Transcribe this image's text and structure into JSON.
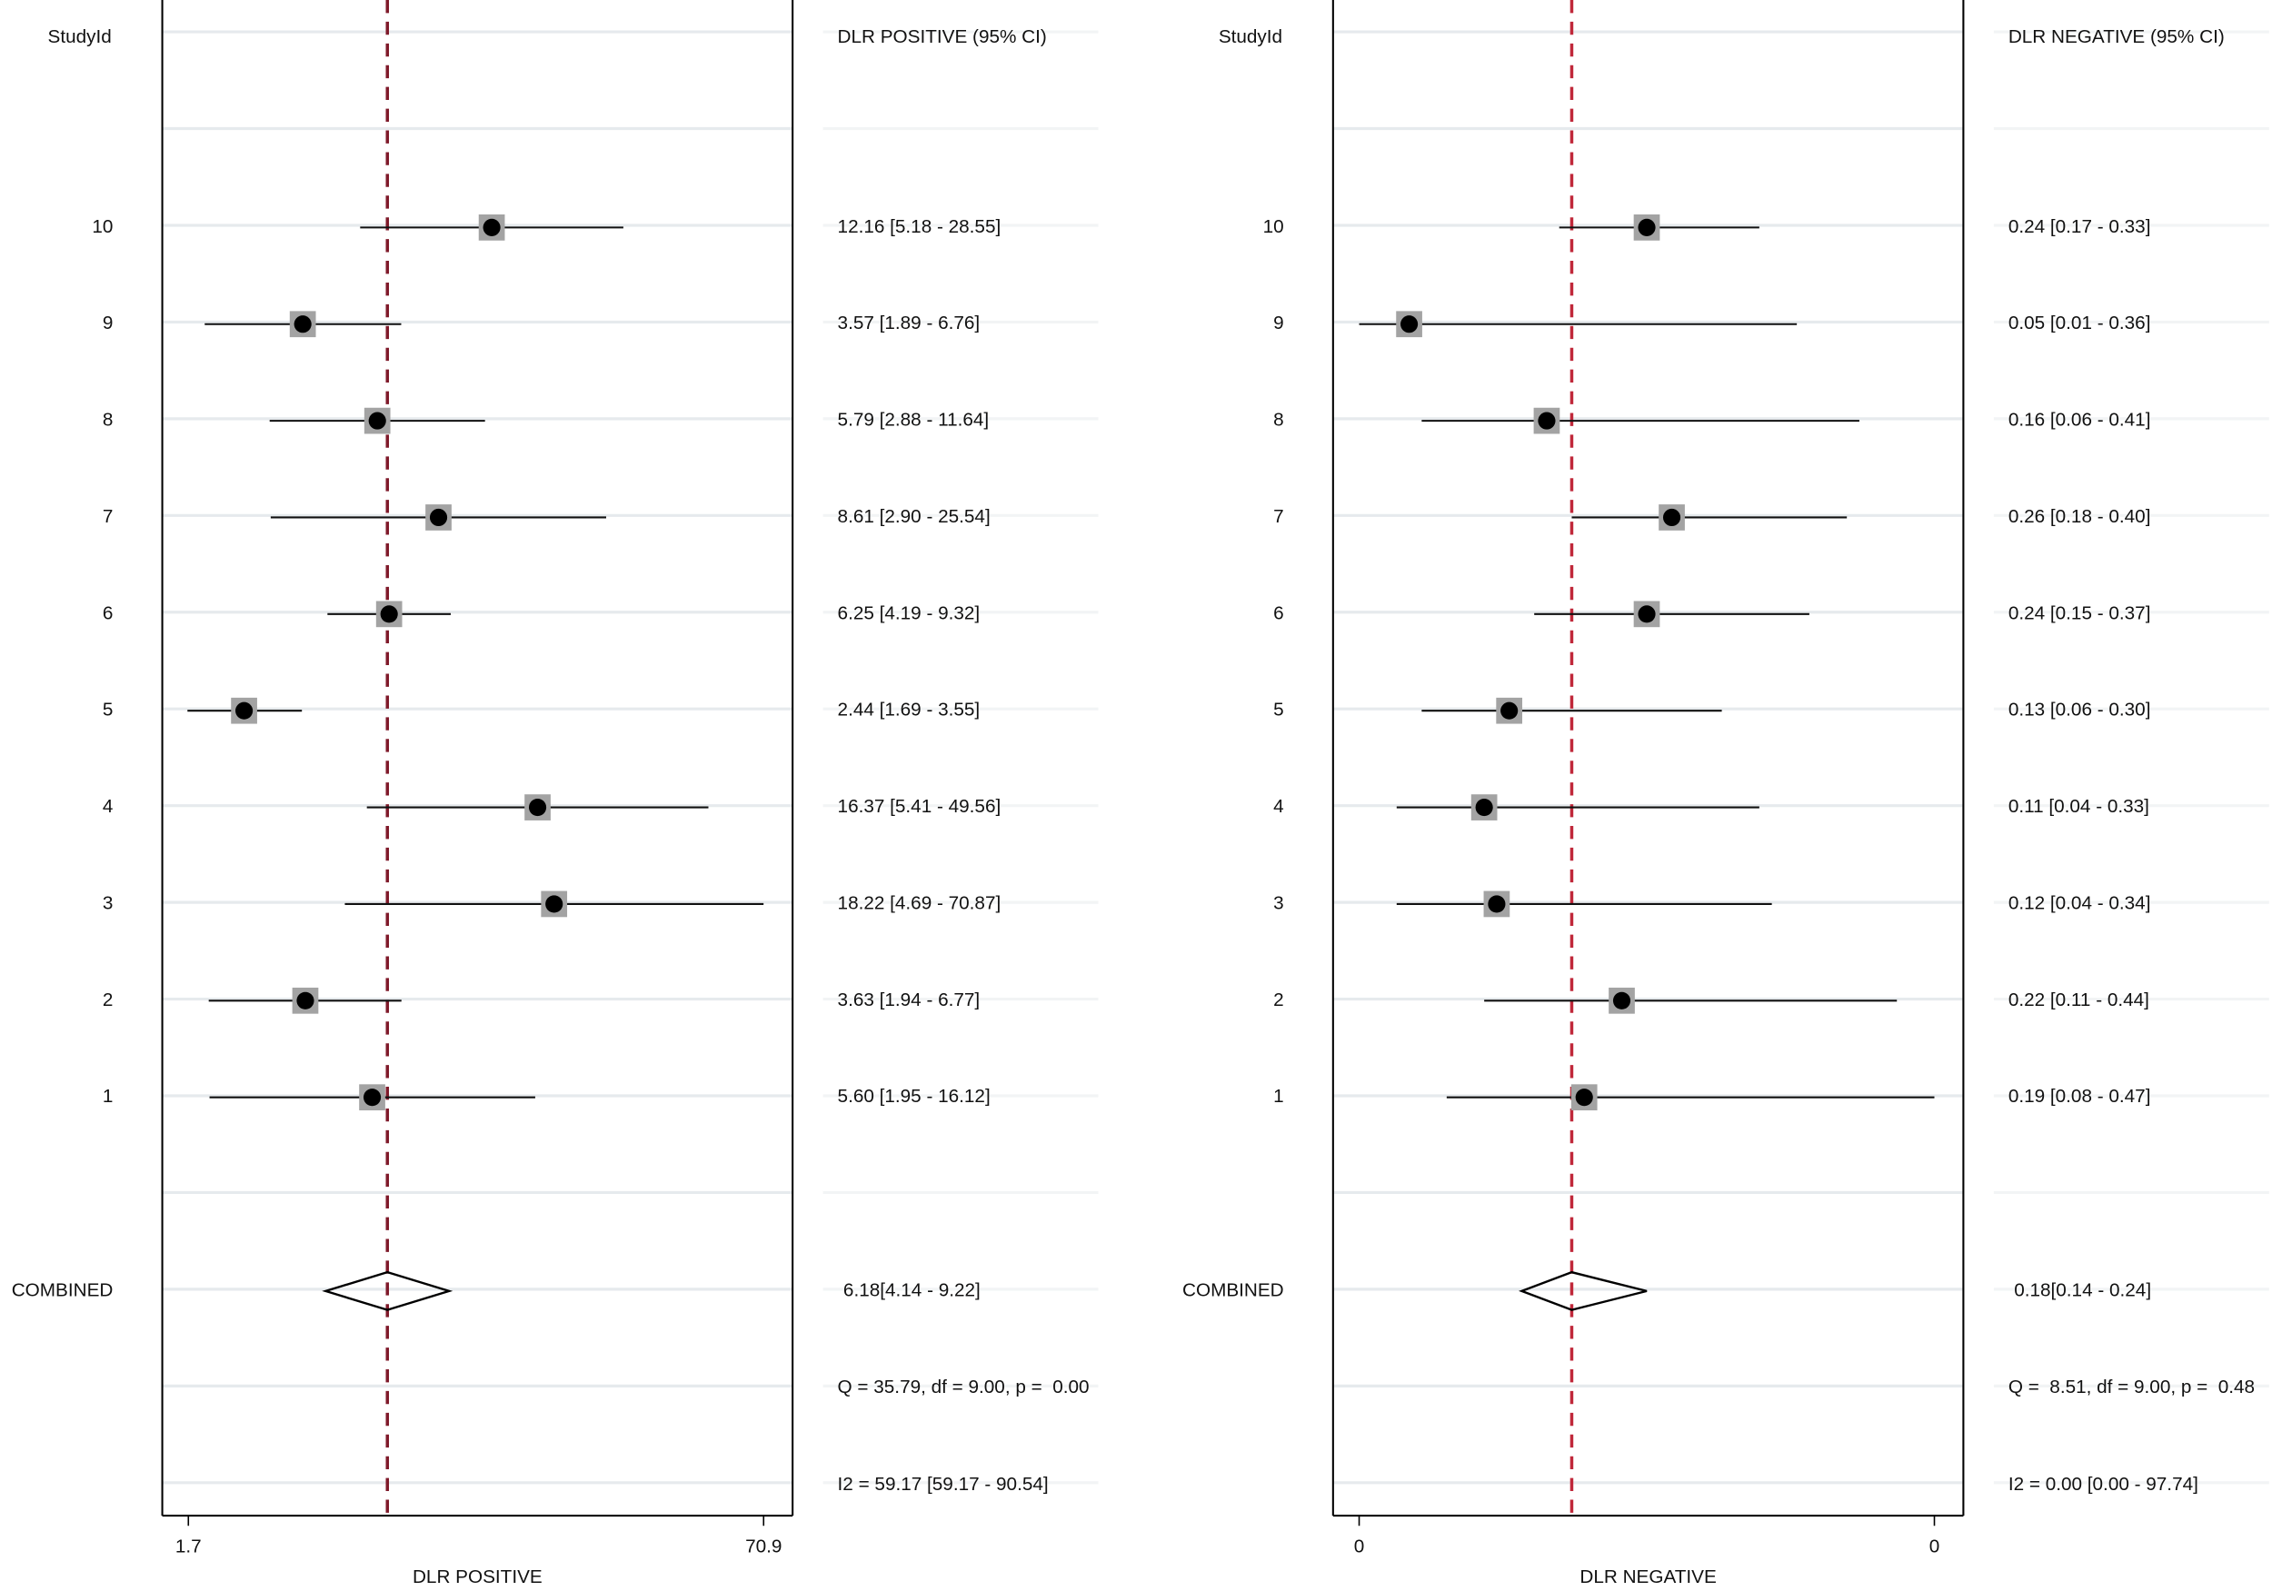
{
  "chart_data": [
    {
      "type": "forest",
      "id_header": "StudyId",
      "estimate_header": "DLR POSITIVE (95% CI)",
      "xlabel": "DLR POSITIVE",
      "xscale": "log",
      "xlim": [
        1.7,
        70.9
      ],
      "xticks": [
        1.7,
        70.9
      ],
      "grid": true,
      "categories": [
        "10",
        "9",
        "8",
        "7",
        "6",
        "5",
        "4",
        "3",
        "2",
        "1"
      ],
      "values": [
        12.16,
        3.57,
        5.79,
        8.61,
        6.25,
        2.44,
        16.37,
        18.22,
        3.63,
        5.6
      ],
      "lower": [
        5.18,
        1.89,
        2.88,
        2.9,
        4.19,
        1.69,
        5.41,
        4.69,
        1.94,
        1.95
      ],
      "upper": [
        28.55,
        6.76,
        11.64,
        25.54,
        9.32,
        3.55,
        49.56,
        70.87,
        6.77,
        16.12
      ],
      "value_labels": [
        "12.16 [5.18 - 28.55]",
        "3.57 [1.89 - 6.76]",
        "5.79 [2.88 - 11.64]",
        "8.61 [2.90 - 25.54]",
        "6.25 [4.19 - 9.32]",
        "2.44 [1.69 - 3.55]",
        "16.37 [5.41 - 49.56]",
        "18.22 [4.69 - 70.87]",
        "3.63 [1.94 - 6.77]",
        "5.60 [1.95 - 16.12]"
      ],
      "color": "#a3a3a3",
      "ref_color": "#7f1a2a",
      "combined": {
        "label": "COMBINED",
        "value": 6.18,
        "lower": 4.14,
        "upper": 9.22,
        "value_label": "6.18[4.14 - 9.22]"
      },
      "heterogeneity": [
        "Q = 35.79, df = 9.00, p =  0.00",
        "I2 = 59.17 [59.17 - 90.54]"
      ]
    },
    {
      "type": "forest",
      "id_header": "StudyId",
      "estimate_header": "DLR NEGATIVE (95% CI)",
      "xlabel": "DLR NEGATIVE",
      "xscale": "linear",
      "xlim": [
        0.01,
        0.47
      ],
      "xticks": [
        {
          "value": 0.01,
          "label": "0"
        },
        {
          "value": 0.47,
          "label": "0"
        }
      ],
      "grid": true,
      "categories": [
        "10",
        "9",
        "8",
        "7",
        "6",
        "5",
        "4",
        "3",
        "2",
        "1"
      ],
      "values": [
        0.24,
        0.05,
        0.16,
        0.26,
        0.24,
        0.13,
        0.11,
        0.12,
        0.22,
        0.19
      ],
      "lower": [
        0.17,
        0.01,
        0.06,
        0.18,
        0.15,
        0.06,
        0.04,
        0.04,
        0.11,
        0.08
      ],
      "upper": [
        0.33,
        0.36,
        0.41,
        0.4,
        0.37,
        0.3,
        0.33,
        0.34,
        0.44,
        0.47
      ],
      "value_labels": [
        "0.24 [0.17 - 0.33]",
        "0.05 [0.01 - 0.36]",
        "0.16 [0.06 - 0.41]",
        "0.26 [0.18 - 0.40]",
        "0.24 [0.15 - 0.37]",
        "0.13 [0.06 - 0.30]",
        "0.11 [0.04 - 0.33]",
        "0.12 [0.04 - 0.34]",
        "0.22 [0.11 - 0.44]",
        "0.19 [0.08 - 0.47]"
      ],
      "color": "#a3a3a3",
      "ref_color": "#c0283a",
      "combined": {
        "label": "COMBINED",
        "value": 0.18,
        "lower": 0.14,
        "upper": 0.24,
        "value_label": "0.18[0.14 - 0.24]"
      },
      "heterogeneity": [
        "Q =  8.51, df = 9.00, p =  0.48",
        "I2 = 0.00 [0.00 - 97.74]"
      ]
    }
  ]
}
